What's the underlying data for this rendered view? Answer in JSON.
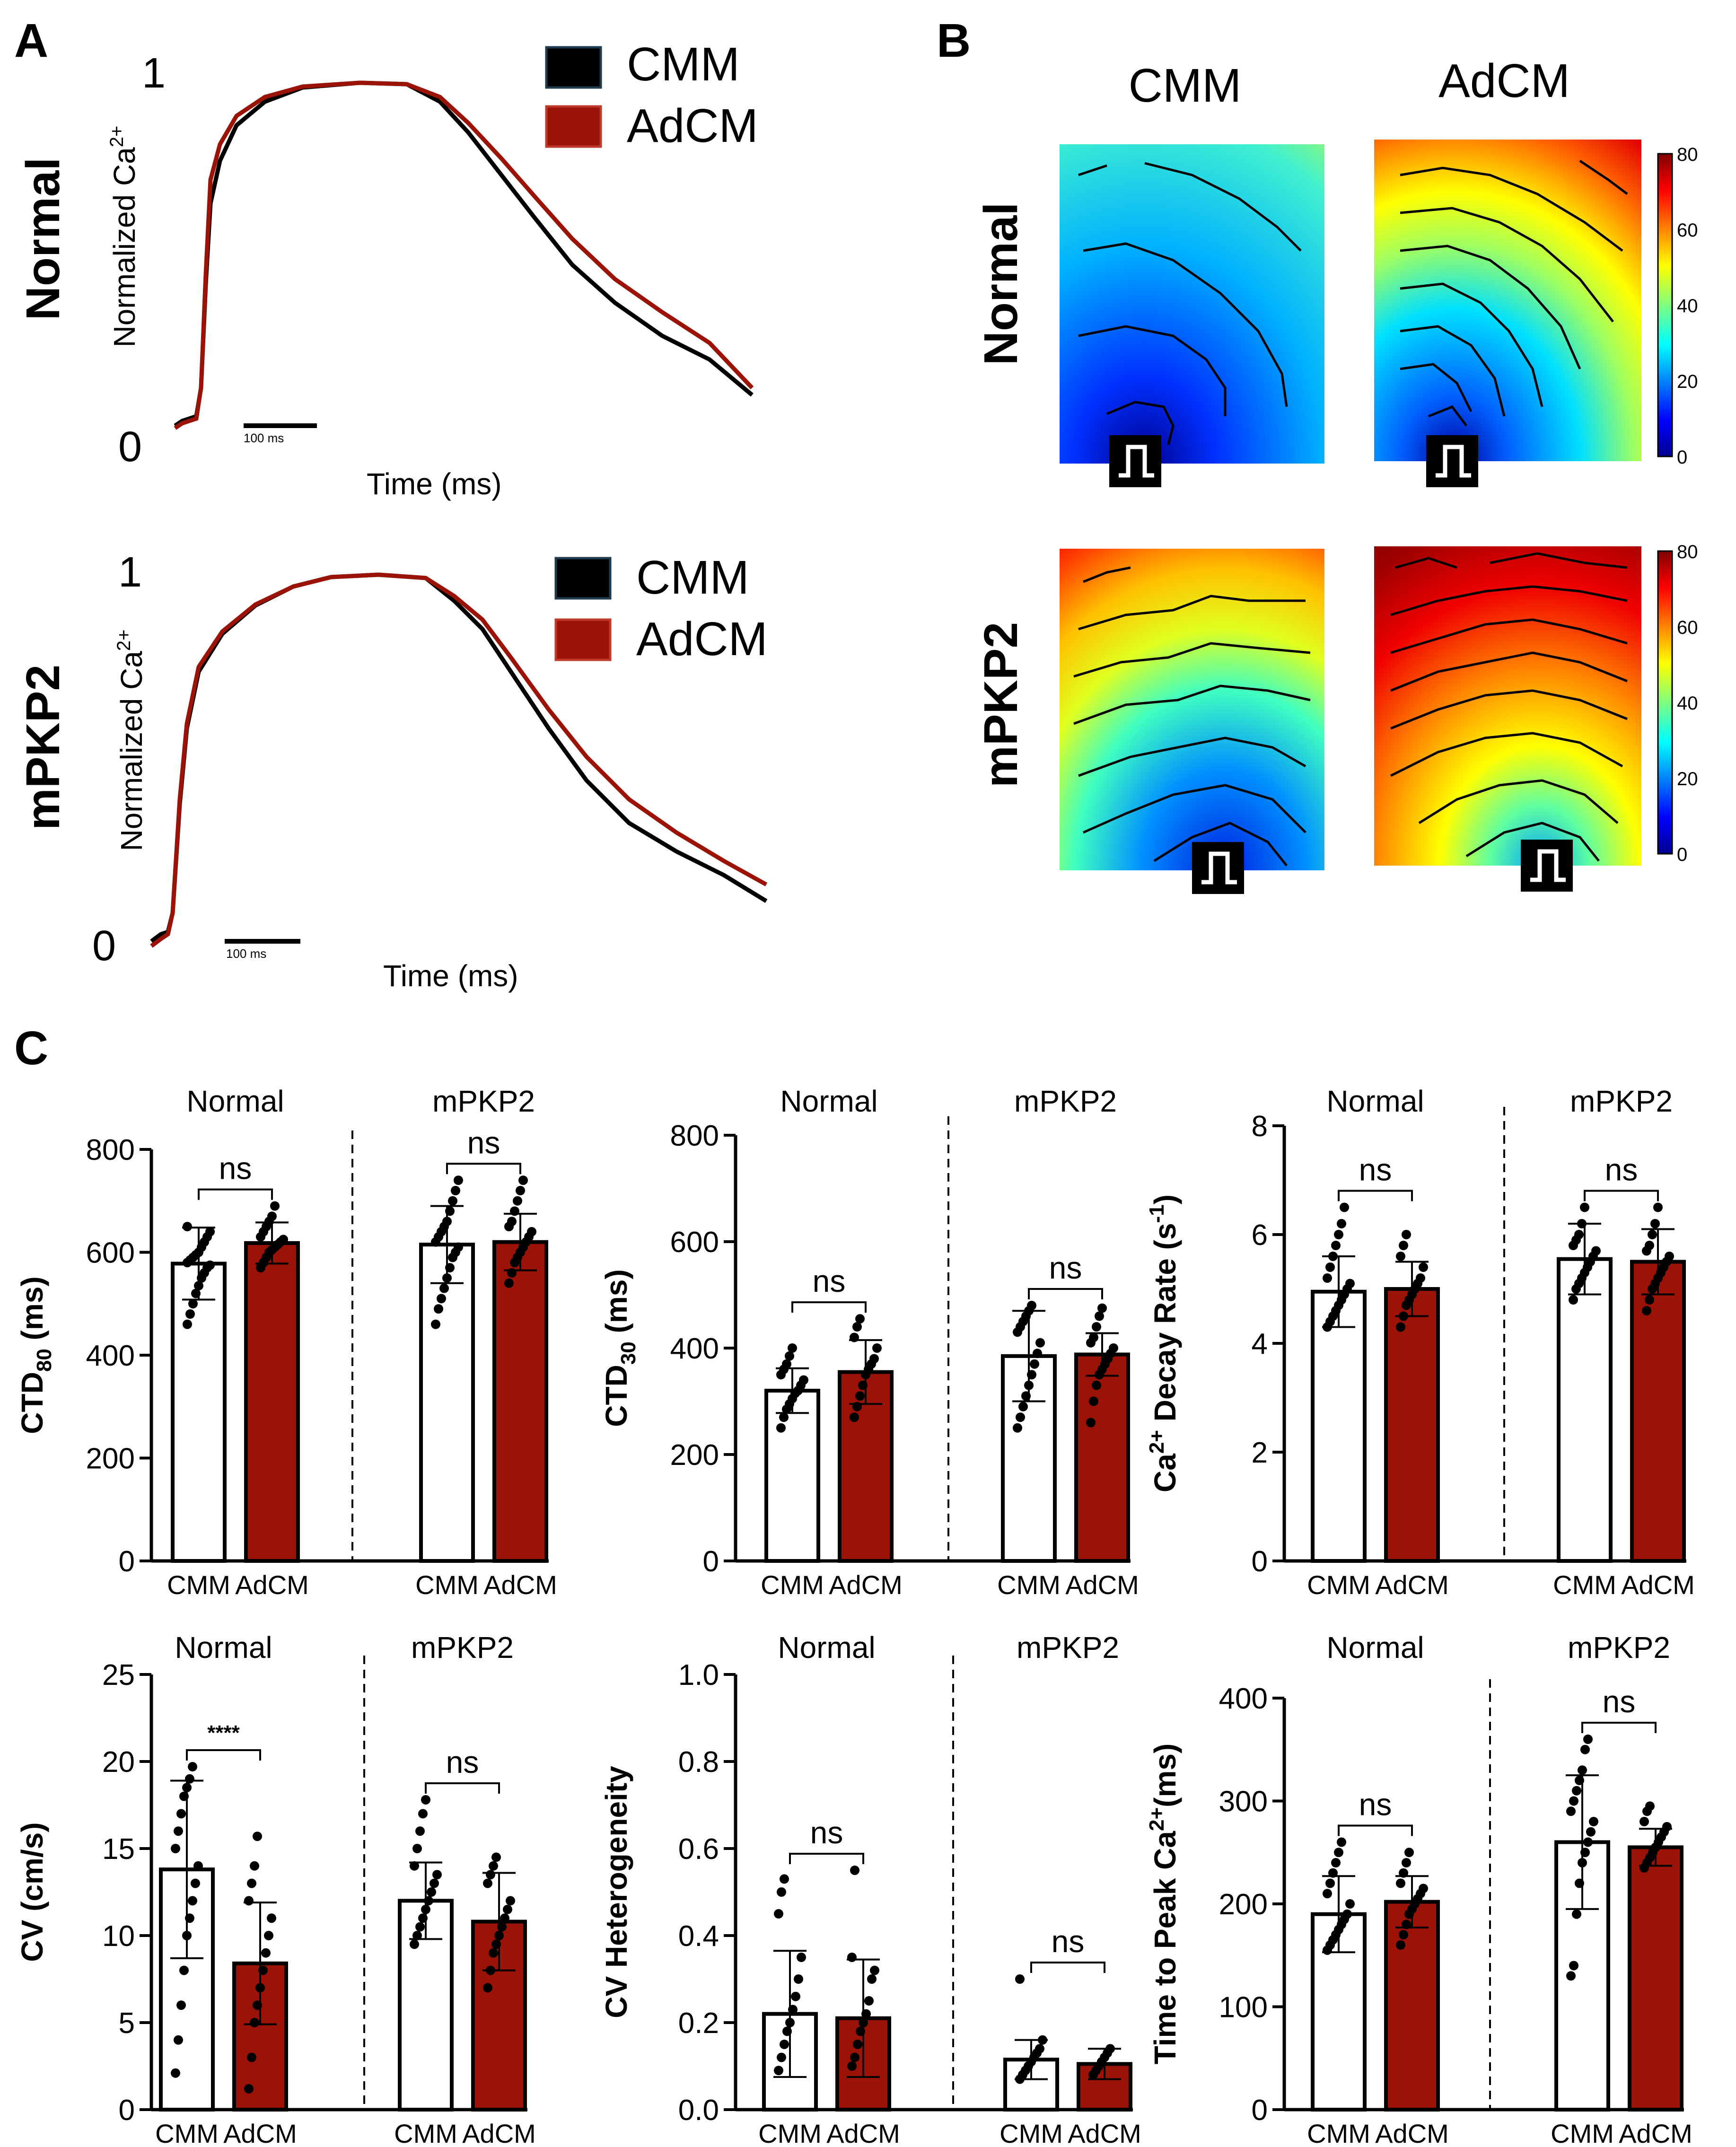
{
  "panel_letters": {
    "a": "A",
    "b": "B",
    "c": "C"
  },
  "colors": {
    "cmm": "#000000",
    "adcm": "#9b1206",
    "bar_adcm": "#9b1206",
    "bar_cmm": "#ffffff"
  },
  "traces": [
    {
      "row_label": "Normal",
      "y_label": "Normalized Ca",
      "y_label_sup": "2+",
      "y_max_label": "1",
      "y_min_label": "0",
      "x_label": "Time (ms)",
      "scale_bar": "100 ms",
      "legend": [
        "CMM",
        "AdCM"
      ]
    },
    {
      "row_label": "mPKP2",
      "y_label": "Normalized Ca",
      "y_label_sup": "2+",
      "y_max_label": "1",
      "y_min_label": "0",
      "x_label": "Time (ms)",
      "scale_bar": "100 ms",
      "legend": [
        "CMM",
        "AdCM"
      ]
    }
  ],
  "maps": {
    "col_labels": [
      "CMM",
      "AdCM"
    ],
    "row_labels": [
      "Normal",
      "mPKP2"
    ],
    "colorbar_ticks": [
      "80",
      "60",
      "40",
      "20",
      "0"
    ],
    "colorbar_range": [
      0,
      80
    ]
  },
  "chart_data": [
    {
      "type": "bar",
      "id": "ctd80",
      "ylabel": "CTD",
      "ylabel_sub": "80",
      "ylabel_tail": " (ms)",
      "ylim": [
        0,
        800
      ],
      "yticks": [
        "0",
        "200",
        "400",
        "600",
        "800"
      ],
      "groups": [
        "Normal",
        "mPKP2"
      ],
      "categories": [
        "CMM",
        "AdCM"
      ],
      "series": [
        {
          "name": "CMM",
          "values": [
            578,
            615
          ],
          "sd": [
            70,
            75
          ],
          "points": [
            [
              460,
              480,
              500,
              520,
              535,
              550,
              560,
              570,
              575,
              580,
              585,
              590,
              595,
              600,
              610,
              620,
              630,
              640,
              650
            ],
            [
              460,
              490,
              510,
              530,
              550,
              570,
              590,
              600,
              610,
              620,
              630,
              640,
              650,
              660,
              680,
              700,
              720,
              740
            ]
          ]
        },
        {
          "name": "AdCM",
          "values": [
            618,
            620
          ],
          "sd": [
            40,
            55
          ],
          "points": [
            [
              570,
              580,
              590,
              600,
              605,
              610,
              615,
              620,
              625,
              630,
              640,
              650,
              660,
              670,
              690
            ],
            [
              540,
              560,
              580,
              590,
              600,
              610,
              620,
              630,
              640,
              650,
              660,
              680,
              700,
              720,
              740
            ]
          ]
        }
      ],
      "significance": [
        "ns",
        "ns"
      ]
    },
    {
      "type": "bar",
      "id": "ctd30",
      "ylabel": "CTD",
      "ylabel_sub": "30",
      "ylabel_tail": " (ms)",
      "ylim": [
        0,
        800
      ],
      "yticks": [
        "0",
        "200",
        "400",
        "600",
        "800"
      ],
      "groups": [
        "Normal",
        "mPKP2"
      ],
      "categories": [
        "CMM",
        "AdCM"
      ],
      "series": [
        {
          "name": "CMM",
          "values": [
            320,
            385
          ],
          "sd": [
            42,
            85
          ],
          "points": [
            [
              250,
              270,
              285,
              295,
              305,
              315,
              320,
              330,
              340,
              350,
              360,
              370,
              385,
              400
            ],
            [
              250,
              270,
              290,
              310,
              330,
              350,
              370,
              390,
              410,
              430,
              440,
              450,
              460,
              470,
              480
            ]
          ]
        },
        {
          "name": "AdCM",
          "values": [
            355,
            388
          ],
          "sd": [
            60,
            40
          ],
          "points": [
            [
              270,
              290,
              310,
              330,
              350,
              360,
              370,
              380,
              400,
              420,
              440,
              455
            ],
            [
              260,
              300,
              330,
              350,
              360,
              370,
              380,
              390,
              400,
              410,
              420,
              440,
              460,
              475
            ]
          ]
        }
      ],
      "significance": [
        "ns",
        "ns"
      ]
    },
    {
      "type": "bar",
      "id": "decay",
      "ylabel": "Ca",
      "ylabel_sup": "2+",
      "ylabel_tail": " Decay Rate (s",
      "ylabel_sup2": "-1",
      "ylabel_end": ")",
      "ylim": [
        0,
        8
      ],
      "yticks": [
        "0",
        "2",
        "4",
        "6",
        "8"
      ],
      "groups": [
        "Normal",
        "mPKP2"
      ],
      "categories": [
        "CMM",
        "AdCM"
      ],
      "series": [
        {
          "name": "CMM",
          "values": [
            4.95,
            5.55
          ],
          "sd": [
            0.65,
            0.65
          ],
          "points": [
            [
              4.3,
              4.4,
              4.5,
              4.6,
              4.7,
              4.8,
              4.9,
              5.0,
              5.1,
              5.2,
              5.4,
              5.6,
              5.8,
              6.0,
              6.2,
              6.5
            ],
            [
              4.8,
              5.0,
              5.1,
              5.2,
              5.3,
              5.4,
              5.5,
              5.6,
              5.7,
              5.8,
              5.9,
              6.0,
              6.2,
              6.5
            ]
          ]
        },
        {
          "name": "AdCM",
          "values": [
            5.0,
            5.5
          ],
          "sd": [
            0.5,
            0.6
          ],
          "points": [
            [
              4.3,
              4.5,
              4.7,
              4.8,
              4.9,
              5.0,
              5.1,
              5.2,
              5.4,
              5.6,
              5.8,
              6.0
            ],
            [
              4.6,
              4.8,
              5.0,
              5.1,
              5.2,
              5.3,
              5.4,
              5.5,
              5.6,
              5.7,
              5.8,
              6.0,
              6.2,
              6.5
            ]
          ]
        }
      ],
      "significance": [
        "ns",
        "ns"
      ]
    },
    {
      "type": "bar",
      "id": "cv",
      "ylabel": "CV (cm/s)",
      "ylim": [
        0,
        25
      ],
      "yticks": [
        "0",
        "5",
        "10",
        "15",
        "20",
        "25"
      ],
      "groups": [
        "Normal",
        "mPKP2"
      ],
      "categories": [
        "CMM",
        "AdCM"
      ],
      "series": [
        {
          "name": "CMM",
          "values": [
            13.8,
            12.0
          ],
          "sd": [
            5.1,
            2.2
          ],
          "points": [
            [
              2.1,
              4,
              6,
              8,
              10,
              11,
              12,
              13,
              14,
              15,
              16,
              17,
              18,
              18.5,
              19,
              19.7
            ],
            [
              9.5,
              10,
              10.5,
              11,
              11.5,
              12,
              12.5,
              13,
              13.5,
              14,
              15,
              16,
              17,
              17.8
            ]
          ]
        },
        {
          "name": "AdCM",
          "values": [
            8.4,
            10.8
          ],
          "sd": [
            3.5,
            2.8
          ],
          "points": [
            [
              1.2,
              3,
              5,
              6,
              7,
              8,
              9,
              10,
              11,
              12,
              13,
              14,
              15.7
            ],
            [
              7,
              8,
              9,
              9.5,
              10,
              10.5,
              11,
              11.5,
              12,
              13,
              13.5,
              14,
              14.5
            ]
          ]
        }
      ],
      "significance": [
        "****",
        "ns"
      ]
    },
    {
      "type": "bar",
      "id": "cvhet",
      "ylabel": "CV Heterogeneity",
      "ylim": [
        0,
        1.0
      ],
      "yticks": [
        "0.0",
        "0.2",
        "0.4",
        "0.6",
        "0.8",
        "1.0"
      ],
      "groups": [
        "Normal",
        "mPKP2"
      ],
      "categories": [
        "CMM",
        "AdCM"
      ],
      "series": [
        {
          "name": "CMM",
          "values": [
            0.22,
            0.115
          ],
          "sd": [
            0.145,
            0.045
          ],
          "points": [
            [
              0.09,
              0.12,
              0.15,
              0.18,
              0.2,
              0.23,
              0.26,
              0.3,
              0.35,
              0.45,
              0.5,
              0.53
            ],
            [
              0.07,
              0.08,
              0.09,
              0.1,
              0.11,
              0.12,
              0.13,
              0.14,
              0.16,
              0.3
            ]
          ]
        },
        {
          "name": "AdCM",
          "values": [
            0.21,
            0.105
          ],
          "sd": [
            0.135,
            0.035
          ],
          "points": [
            [
              0.1,
              0.12,
              0.15,
              0.18,
              0.2,
              0.22,
              0.25,
              0.3,
              0.32,
              0.35,
              0.55
            ],
            [
              0.08,
              0.09,
              0.1,
              0.11,
              0.12,
              0.13,
              0.14
            ]
          ]
        }
      ],
      "significance": [
        "ns",
        "ns"
      ]
    },
    {
      "type": "bar",
      "id": "ttp",
      "ylabel": "Time to Peak Ca",
      "ylabel_sup": "2+",
      "ylabel_tail": "(ms)",
      "ylim": [
        0,
        400
      ],
      "yticks": [
        "0",
        "100",
        "200",
        "300",
        "400"
      ],
      "groups": [
        "Normal",
        "mPKP2"
      ],
      "categories": [
        "CMM",
        "AdCM"
      ],
      "series": [
        {
          "name": "CMM",
          "values": [
            190,
            260
          ],
          "sd": [
            37,
            65
          ],
          "points": [
            [
              155,
              160,
              165,
              170,
              175,
              180,
              185,
              190,
              200,
              210,
              220,
              230,
              240,
              250,
              260
            ],
            [
              130,
              140,
              190,
              220,
              240,
              250,
              260,
              270,
              280,
              290,
              300,
              310,
              320,
              330,
              350,
              360
            ]
          ]
        },
        {
          "name": "AdCM",
          "values": [
            202,
            255
          ],
          "sd": [
            25,
            18
          ],
          "points": [
            [
              160,
              170,
              180,
              190,
              195,
              200,
              205,
              210,
              215,
              220,
              230,
              240,
              250
            ],
            [
              235,
              240,
              245,
              250,
              255,
              260,
              265,
              270,
              275,
              280,
              290,
              295
            ]
          ]
        }
      ],
      "significance": [
        "ns",
        "ns"
      ]
    }
  ]
}
